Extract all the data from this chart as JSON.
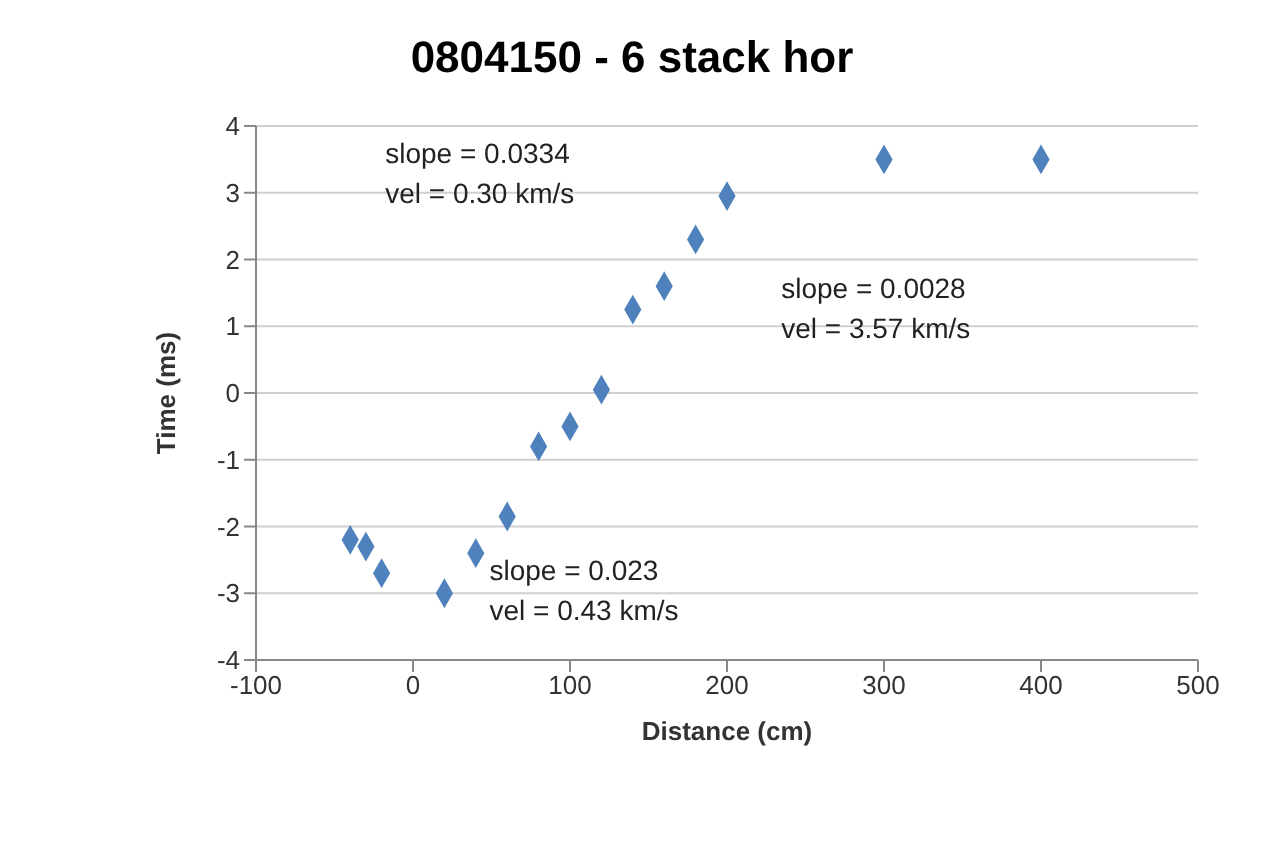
{
  "chart_data": {
    "type": "scatter",
    "title": "0804150 - 6 stack hor",
    "xlabel": "Distance (cm)",
    "ylabel": "Time (ms)",
    "x": [
      -40,
      -30,
      -20,
      20,
      40,
      60,
      80,
      100,
      120,
      140,
      160,
      180,
      200,
      300,
      400
    ],
    "series": [
      {
        "color": "#4f81bd",
        "values": [
          -2.2,
          -2.3,
          -2.7,
          -3.0,
          -2.4,
          -1.85,
          -0.8,
          -0.5,
          0.05,
          1.25,
          1.6,
          2.3,
          2.95,
          3.5,
          3.5
        ]
      }
    ],
    "xlim": [
      -100,
      500
    ],
    "xticks": [
      -100,
      0,
      100,
      200,
      300,
      400,
      500
    ],
    "ylim": [
      -4,
      4
    ],
    "yticks": [
      -4,
      -3,
      -2,
      -1,
      0,
      1,
      2,
      3,
      4
    ],
    "grid": "y",
    "marker": "diamond",
    "legend": false,
    "annotations": [
      "slope = 0.0334\nvel = 0.30 km/s",
      "slope = 0.0028\nvel = 3.57 km/s",
      "slope = 0.023\nvel = 0.43 km/s"
    ]
  }
}
